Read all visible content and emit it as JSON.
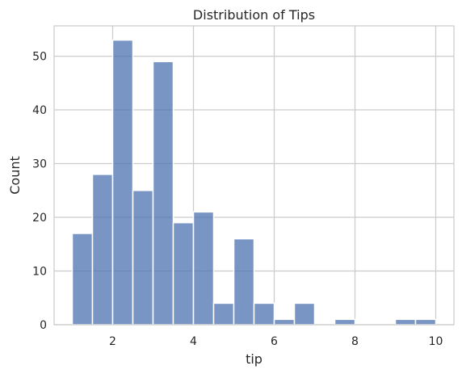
{
  "chart_data": {
    "type": "bar",
    "title": "Distribution of Tips",
    "xlabel": "tip",
    "ylabel": "Count",
    "bin_edges": [
      1.0,
      1.5,
      2.0,
      2.5,
      3.0,
      3.5,
      4.0,
      4.5,
      5.0,
      5.5,
      6.0,
      6.5,
      7.0,
      7.5,
      8.0,
      8.5,
      9.0,
      9.5,
      10.0
    ],
    "counts": [
      17,
      28,
      53,
      25,
      49,
      19,
      21,
      4,
      16,
      4,
      1,
      4,
      0,
      1,
      0,
      0,
      1,
      1
    ],
    "xlim": [
      0.55,
      10.45
    ],
    "ylim": [
      0,
      55.65
    ],
    "xticks": [
      2,
      4,
      6,
      8,
      10
    ],
    "xtick_labels": [
      "2",
      "4",
      "6",
      "8",
      "10"
    ],
    "yticks": [
      0,
      10,
      20,
      30,
      40,
      50
    ],
    "ytick_labels": [
      "0",
      "10",
      "20",
      "30",
      "40",
      "50"
    ],
    "grid": true,
    "colors": {
      "bar_fill": "#4c72b0",
      "bar_opacity": 0.75,
      "bar_edge": "#ffffff",
      "grid": "#cccccc",
      "spine": "#cccccc",
      "text": "#262626"
    }
  }
}
